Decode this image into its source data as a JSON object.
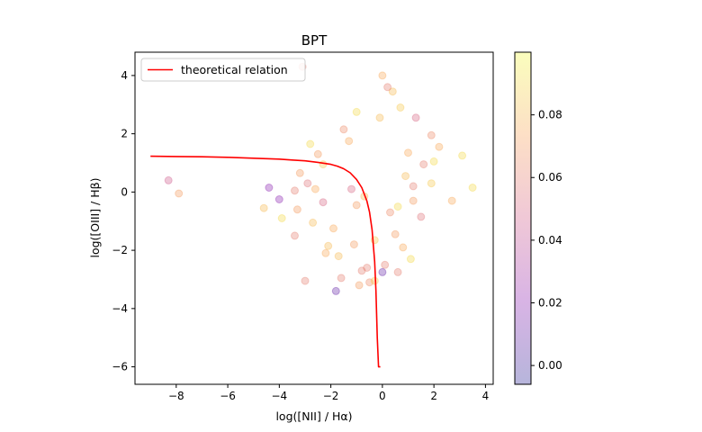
{
  "chart_data": {
    "type": "scatter",
    "title": "BPT",
    "xlabel": "log([NII] / Hα)",
    "ylabel": "log([OIII] / Hβ)",
    "xlim": [
      -9.6,
      4.3
    ],
    "ylim": [
      -6.6,
      4.8
    ],
    "x_ticks": [
      -8,
      -6,
      -4,
      -2,
      0,
      2,
      4
    ],
    "y_ticks": [
      -6,
      -4,
      -2,
      0,
      2,
      4
    ],
    "tick_labels_x": [
      "−8",
      "−6",
      "−4",
      "−2",
      "0",
      "2",
      "4"
    ],
    "tick_labels_y": [
      "−6",
      "−4",
      "−2",
      "0",
      "2",
      "4"
    ],
    "grid": false,
    "legend": {
      "position": "upper-left",
      "entries": [
        "theoretical relation"
      ]
    },
    "line_color": "#ff0000",
    "point_alpha": 0.3,
    "colormap": "plasma",
    "colorbar": {
      "range": [
        -0.006,
        0.1
      ],
      "ticks": [
        0.0,
        0.02,
        0.04,
        0.06,
        0.08
      ],
      "tick_labels": [
        "0.00",
        "0.02",
        "0.04",
        "0.06",
        "0.08"
      ]
    },
    "series": [
      {
        "name": "theoretical relation",
        "type": "line",
        "x": [
          -9.0,
          -8.0,
          -7.0,
          -6.0,
          -5.0,
          -4.0,
          -3.5,
          -3.0,
          -2.5,
          -2.0,
          -1.75,
          -1.5,
          -1.25,
          -1.0,
          -0.8,
          -0.6,
          -0.5,
          -0.4,
          -0.3,
          -0.25,
          -0.2,
          -0.15,
          -0.12,
          -0.1,
          -0.08
        ],
        "y": [
          1.23,
          1.22,
          1.21,
          1.19,
          1.16,
          1.13,
          1.1,
          1.07,
          1.02,
          0.95,
          0.89,
          0.8,
          0.66,
          0.43,
          0.15,
          -0.31,
          -0.69,
          -1.29,
          -2.39,
          -3.38,
          -5.0,
          -6.0,
          -6.0,
          -6.0,
          -6.0
        ]
      },
      {
        "name": "",
        "type": "scatter",
        "x": [
          -8.3,
          -7.9,
          -4.4,
          -4.0,
          -4.6,
          -3.9,
          -3.4,
          -3.0,
          -3.1,
          -2.8,
          -2.5,
          -3.2,
          -2.6,
          -2.3,
          -2.1,
          -1.8,
          -1.6,
          -1.9,
          -2.3,
          -3.4,
          -3.3,
          -2.9,
          -2.7,
          -1.5,
          -1.3,
          -1.0,
          0.4,
          0.7,
          1.3,
          1.9,
          2.7,
          3.5,
          2.2,
          1.6,
          1.0,
          0.6,
          0.2,
          -0.1,
          0.0,
          0.3,
          0.8,
          1.1,
          -0.6,
          -0.5,
          -0.9,
          -1.7,
          -1.1,
          0.1,
          1.5,
          2.0,
          1.9,
          1.2,
          0.9,
          0.5,
          0.0,
          -0.3,
          -0.8,
          -2.2,
          -1.2,
          -0.7,
          1.2,
          3.1,
          0.6,
          -0.3,
          -1.0
        ],
        "y": [
          0.4,
          -0.05,
          0.15,
          -0.25,
          -0.55,
          -0.9,
          -1.5,
          -3.05,
          4.3,
          1.65,
          1.3,
          0.65,
          0.1,
          -0.35,
          -1.85,
          -3.4,
          -2.95,
          -1.25,
          0.95,
          0.05,
          -0.6,
          0.3,
          -1.05,
          2.15,
          1.75,
          2.75,
          3.45,
          2.9,
          2.55,
          1.95,
          -0.3,
          0.15,
          1.55,
          0.95,
          1.35,
          -0.5,
          3.6,
          2.55,
          4.0,
          -0.7,
          -1.9,
          -2.3,
          -2.6,
          -3.1,
          -3.2,
          -2.2,
          -1.8,
          -2.5,
          -0.85,
          1.05,
          0.3,
          -0.3,
          0.55,
          -1.45,
          -2.75,
          -3.05,
          -2.7,
          -2.1,
          0.1,
          -0.15,
          0.2,
          1.25,
          -2.75,
          -1.65,
          -0.45
        ],
        "c": [
          0.045,
          0.07,
          0.02,
          0.02,
          0.08,
          0.09,
          0.06,
          0.06,
          0.06,
          0.09,
          0.07,
          0.07,
          0.075,
          0.05,
          0.08,
          0.01,
          0.06,
          0.075,
          0.085,
          0.06,
          0.07,
          0.055,
          0.08,
          0.065,
          0.075,
          0.09,
          0.08,
          0.085,
          0.05,
          0.065,
          0.075,
          0.09,
          0.075,
          0.06,
          0.075,
          0.09,
          0.06,
          0.08,
          0.075,
          0.065,
          0.075,
          0.09,
          0.06,
          0.065,
          0.07,
          0.08,
          0.07,
          0.06,
          0.055,
          0.09,
          0.085,
          0.07,
          0.08,
          0.07,
          0.01,
          0.085,
          0.06,
          0.075,
          0.05,
          0.08,
          0.06,
          0.09,
          0.06,
          0.085,
          0.07
        ]
      }
    ]
  }
}
